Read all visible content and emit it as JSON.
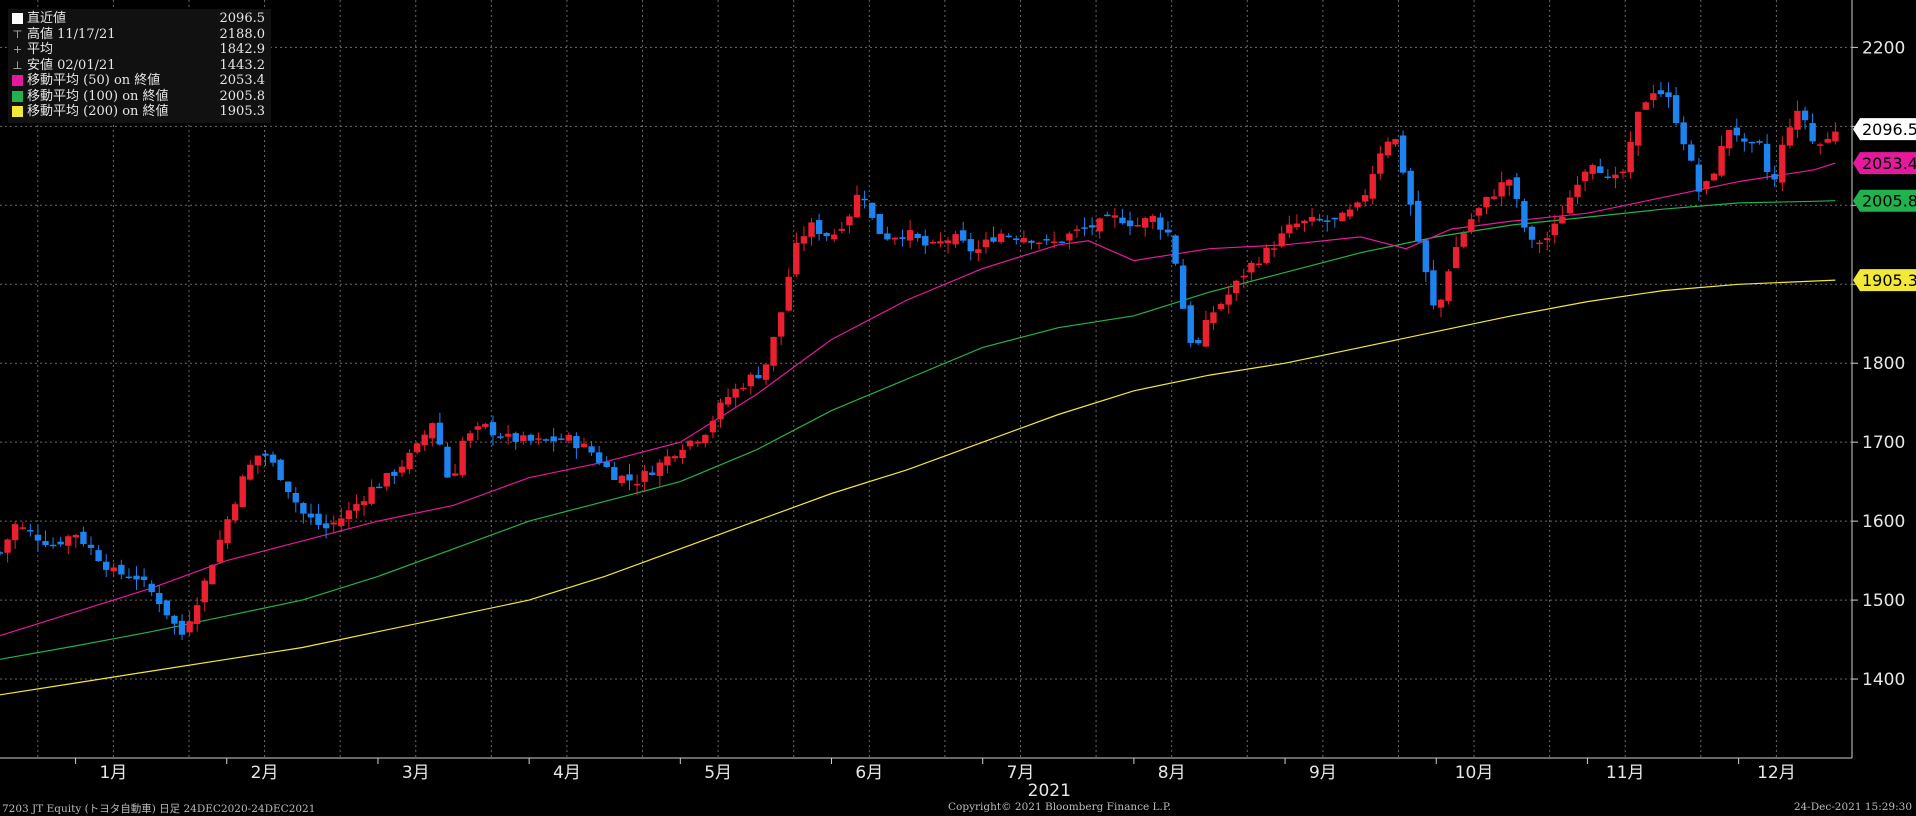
{
  "legend": [
    {
      "label": "直近値",
      "value": "2096.5",
      "swatch": "#ffffff"
    },
    {
      "label": "高値 11/17/21",
      "value": "2188.0",
      "glyph": "⊤"
    },
    {
      "label": "平均",
      "value": "1842.9",
      "glyph": "+"
    },
    {
      "label": "安値 02/01/21",
      "value": "1443.2",
      "glyph": "⊥"
    },
    {
      "label": "移動平均 (50) on 終値",
      "value": "2053.4",
      "swatch": "#e5199c"
    },
    {
      "label": "移動平均 (100) on 終値",
      "value": "2005.8",
      "swatch": "#22b14c"
    },
    {
      "label": "移動平均 (200) on 終値",
      "value": "1905.3",
      "swatch": "#f2e83a"
    }
  ],
  "footer": {
    "left": "7203 JT Equity (トヨタ自動車)  日足 24DEC2020-24DEC2021",
    "center": "Copyright© 2021 Bloomberg Finance L.P.",
    "right": "24-Dec-2021 15:29:30"
  },
  "colors": {
    "up": "#e8202f",
    "down": "#1d83ef",
    "ma50": "#e5199c",
    "ma100": "#22b14c",
    "ma200": "#f2e83a",
    "grid": "#6a6a6a"
  },
  "chart_data": {
    "type": "candlestick",
    "year_label": "2021",
    "x_month_labels": [
      "1月",
      "2月",
      "3月",
      "4月",
      "5月",
      "6月",
      "7月",
      "8月",
      "9月",
      "10月",
      "11月",
      "12月"
    ],
    "x_month_positions": [
      0.75,
      1.75,
      2.75,
      3.75,
      4.75,
      5.75,
      6.75,
      7.75,
      8.75,
      9.75,
      10.75,
      11.75
    ],
    "xlim": [
      0,
      12.25
    ],
    "ylim": [
      1300,
      2260
    ],
    "y_ticks": [
      1400,
      1500,
      1600,
      1700,
      1800,
      1900,
      2000,
      2100,
      2200
    ],
    "y_tick_labels": [
      "1400",
      "1500",
      "1600",
      "1700",
      "1800",
      "",
      "",
      "",
      "2200"
    ],
    "last_value_tags": [
      {
        "series": "直近値",
        "value": 2096.5,
        "label": "2096.5",
        "color": "#ffffff"
      },
      {
        "series": "移動平均 (50)",
        "value": 2053.4,
        "label": "2053.4",
        "color": "#e5199c"
      },
      {
        "series": "移動平均 (100)",
        "value": 2005.8,
        "label": "2005.8",
        "color": "#22b14c"
      },
      {
        "series": "移動平均 (200)",
        "value": 1905.3,
        "label": "1905.3",
        "color": "#f2e83a"
      }
    ],
    "keypoints": [
      [
        0.0,
        1560
      ],
      [
        0.1,
        1595
      ],
      [
        0.35,
        1570
      ],
      [
        0.5,
        1585
      ],
      [
        0.6,
        1565
      ],
      [
        0.75,
        1535
      ],
      [
        0.9,
        1530
      ],
      [
        1.05,
        1500
      ],
      [
        1.2,
        1455
      ],
      [
        1.35,
        1520
      ],
      [
        1.5,
        1600
      ],
      [
        1.62,
        1660
      ],
      [
        1.73,
        1690
      ],
      [
        1.85,
        1660
      ],
      [
        2.0,
        1610
      ],
      [
        2.15,
        1590
      ],
      [
        2.3,
        1610
      ],
      [
        2.45,
        1640
      ],
      [
        2.6,
        1660
      ],
      [
        2.75,
        1690
      ],
      [
        2.87,
        1730
      ],
      [
        2.98,
        1640
      ],
      [
        3.05,
        1700
      ],
      [
        3.2,
        1720
      ],
      [
        3.35,
        1705
      ],
      [
        3.55,
        1700
      ],
      [
        3.75,
        1705
      ],
      [
        3.9,
        1690
      ],
      [
        4.05,
        1660
      ],
      [
        4.2,
        1650
      ],
      [
        4.35,
        1670
      ],
      [
        4.5,
        1695
      ],
      [
        4.65,
        1710
      ],
      [
        4.8,
        1755
      ],
      [
        4.95,
        1780
      ],
      [
        5.05,
        1790
      ],
      [
        5.15,
        1850
      ],
      [
        5.25,
        1940
      ],
      [
        5.35,
        1975
      ],
      [
        5.5,
        1960
      ],
      [
        5.62,
        1990
      ],
      [
        5.7,
        2025
      ],
      [
        5.78,
        1975
      ],
      [
        5.85,
        1960
      ],
      [
        6.0,
        1965
      ],
      [
        6.15,
        1945
      ],
      [
        6.3,
        1960
      ],
      [
        6.45,
        1940
      ],
      [
        6.6,
        1965
      ],
      [
        6.8,
        1960
      ],
      [
        6.95,
        1950
      ],
      [
        7.1,
        1965
      ],
      [
        7.25,
        1975
      ],
      [
        7.4,
        1985
      ],
      [
        7.52,
        1975
      ],
      [
        7.62,
        1985
      ],
      [
        7.75,
        1960
      ],
      [
        7.82,
        1875
      ],
      [
        7.9,
        1810
      ],
      [
        8.0,
        1860
      ],
      [
        8.12,
        1885
      ],
      [
        8.25,
        1920
      ],
      [
        8.4,
        1945
      ],
      [
        8.55,
        1975
      ],
      [
        8.7,
        1980
      ],
      [
        8.85,
        1980
      ],
      [
        9.0,
        2000
      ],
      [
        9.15,
        2080
      ],
      [
        9.22,
        2090
      ],
      [
        9.3,
        2030
      ],
      [
        9.38,
        1955
      ],
      [
        9.5,
        1855
      ],
      [
        9.6,
        1935
      ],
      [
        9.72,
        1980
      ],
      [
        9.85,
        2010
      ],
      [
        9.98,
        2035
      ],
      [
        10.12,
        1950
      ],
      [
        10.25,
        1960
      ],
      [
        10.35,
        1995
      ],
      [
        10.45,
        2040
      ],
      [
        10.55,
        2060
      ],
      [
        10.65,
        2025
      ],
      [
        10.75,
        2045
      ],
      [
        10.85,
        2125
      ],
      [
        10.95,
        2150
      ],
      [
        11.05,
        2130
      ],
      [
        11.15,
        2075
      ],
      [
        11.25,
        2010
      ],
      [
        11.35,
        2050
      ],
      [
        11.45,
        2105
      ],
      [
        11.55,
        2070
      ],
      [
        11.65,
        2075
      ],
      [
        11.72,
        2015
      ],
      [
        11.82,
        2100
      ],
      [
        11.92,
        2120
      ],
      [
        12.0,
        2075
      ],
      [
        12.08,
        2080
      ],
      [
        12.14,
        2096.5
      ]
    ],
    "ma50": [
      [
        0,
        1455
      ],
      [
        0.5,
        1485
      ],
      [
        1.0,
        1515
      ],
      [
        1.5,
        1550
      ],
      [
        2.0,
        1575
      ],
      [
        2.5,
        1600
      ],
      [
        3.0,
        1620
      ],
      [
        3.5,
        1655
      ],
      [
        4.0,
        1675
      ],
      [
        4.5,
        1700
      ],
      [
        5.0,
        1760
      ],
      [
        5.5,
        1830
      ],
      [
        6.0,
        1880
      ],
      [
        6.5,
        1920
      ],
      [
        7.0,
        1950
      ],
      [
        7.2,
        1955
      ],
      [
        7.5,
        1930
      ],
      [
        8.0,
        1945
      ],
      [
        8.5,
        1950
      ],
      [
        9.0,
        1960
      ],
      [
        9.3,
        1945
      ],
      [
        9.6,
        1970
      ],
      [
        10.0,
        1980
      ],
      [
        10.5,
        1990
      ],
      [
        11.0,
        2010
      ],
      [
        11.5,
        2030
      ],
      [
        12.0,
        2045
      ],
      [
        12.14,
        2053.4
      ]
    ],
    "ma100": [
      [
        0,
        1425
      ],
      [
        0.5,
        1442
      ],
      [
        1.0,
        1460
      ],
      [
        1.5,
        1480
      ],
      [
        2.0,
        1500
      ],
      [
        2.5,
        1530
      ],
      [
        3.0,
        1565
      ],
      [
        3.5,
        1600
      ],
      [
        4.0,
        1625
      ],
      [
        4.5,
        1650
      ],
      [
        5.0,
        1690
      ],
      [
        5.5,
        1740
      ],
      [
        6.0,
        1780
      ],
      [
        6.5,
        1820
      ],
      [
        7.0,
        1845
      ],
      [
        7.5,
        1860
      ],
      [
        8.0,
        1890
      ],
      [
        8.5,
        1915
      ],
      [
        9.0,
        1940
      ],
      [
        9.5,
        1960
      ],
      [
        10.0,
        1975
      ],
      [
        10.5,
        1985
      ],
      [
        11.0,
        1995
      ],
      [
        11.5,
        2003
      ],
      [
        12.0,
        2005
      ],
      [
        12.14,
        2005.8
      ]
    ],
    "ma200": [
      [
        0,
        1380
      ],
      [
        0.5,
        1395
      ],
      [
        1.0,
        1410
      ],
      [
        1.5,
        1425
      ],
      [
        2.0,
        1440
      ],
      [
        2.5,
        1460
      ],
      [
        3.0,
        1480
      ],
      [
        3.5,
        1500
      ],
      [
        4.0,
        1530
      ],
      [
        4.5,
        1565
      ],
      [
        5.0,
        1600
      ],
      [
        5.5,
        1635
      ],
      [
        6.0,
        1665
      ],
      [
        6.5,
        1700
      ],
      [
        7.0,
        1735
      ],
      [
        7.5,
        1765
      ],
      [
        8.0,
        1785
      ],
      [
        8.5,
        1800
      ],
      [
        9.0,
        1820
      ],
      [
        9.5,
        1840
      ],
      [
        10.0,
        1860
      ],
      [
        10.5,
        1878
      ],
      [
        11.0,
        1892
      ],
      [
        11.5,
        1900
      ],
      [
        12.14,
        1905.3
      ]
    ]
  }
}
